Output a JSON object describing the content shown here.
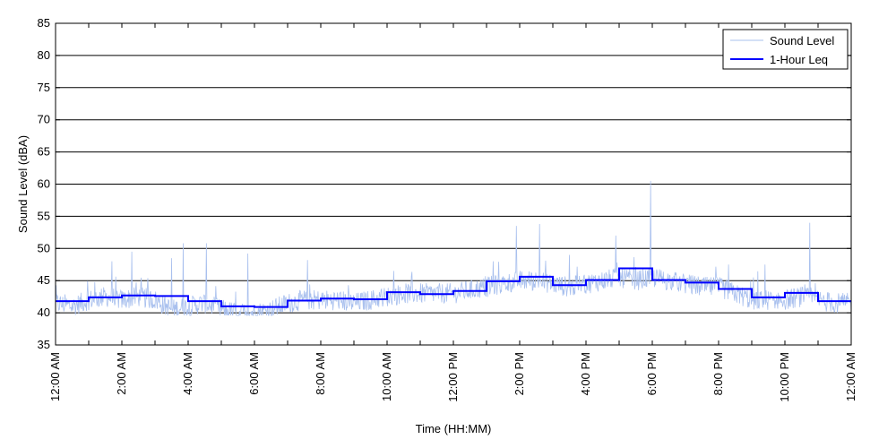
{
  "chart_data": {
    "type": "line",
    "xlabel": "Time (HH:MM)",
    "ylabel": "Sound Level (dBA)",
    "xlim": [
      0,
      24
    ],
    "ylim": [
      35,
      85
    ],
    "grid": "horizontal",
    "legend_placement": "top-right",
    "x_tick_labels": [
      "12:00 AM",
      "2:00 AM",
      "4:00 AM",
      "6:00 AM",
      "8:00 AM",
      "10:00 AM",
      "12:00 PM",
      "2:00 PM",
      "4:00 PM",
      "6:00 PM",
      "8:00 PM",
      "10:00 PM",
      "12:00 AM"
    ],
    "y_ticks": [
      35,
      40,
      45,
      50,
      55,
      60,
      65,
      70,
      75,
      80,
      85
    ],
    "series": [
      {
        "name": "Sound Level",
        "color": "#a9c0ee",
        "description_points_hours": [
          0,
          0.5,
          1,
          1.5,
          2,
          2.5,
          3,
          3.5,
          4,
          4.5,
          5,
          5.5,
          6,
          6.5,
          7,
          7.5,
          8,
          8.5,
          9,
          9.5,
          10,
          10.5,
          11,
          11.5,
          12,
          12.5,
          13,
          13.5,
          14,
          14.5,
          15,
          15.5,
          16,
          16.5,
          17,
          17.5,
          18,
          18.5,
          19,
          19.5,
          20,
          20.5,
          21,
          21.5,
          22,
          22.5,
          23,
          23.5,
          24
        ],
        "values": [
          41.5,
          41,
          42,
          42.5,
          42,
          42.5,
          42,
          40.5,
          41,
          41.5,
          40.5,
          40,
          40,
          40.5,
          41.5,
          42,
          42,
          42,
          41.5,
          42,
          42.5,
          43,
          43,
          43,
          43,
          43.5,
          44,
          44.5,
          45,
          45,
          44.5,
          44,
          44.5,
          45,
          45.5,
          45,
          45.5,
          45,
          44.5,
          44,
          44,
          43,
          42,
          42,
          42,
          42.5,
          42,
          41.5,
          41.5
        ],
        "peaks": [
          {
            "x": 1.7,
            "y": 48
          },
          {
            "x": 2.3,
            "y": 49.5
          },
          {
            "x": 3.5,
            "y": 48.5
          },
          {
            "x": 3.85,
            "y": 50.8
          },
          {
            "x": 4.55,
            "y": 50.8
          },
          {
            "x": 5.8,
            "y": 49.2
          },
          {
            "x": 7.6,
            "y": 48.2
          },
          {
            "x": 10.2,
            "y": 46.5
          },
          {
            "x": 13.2,
            "y": 48
          },
          {
            "x": 13.9,
            "y": 53.5
          },
          {
            "x": 14.6,
            "y": 53.8
          },
          {
            "x": 15.5,
            "y": 49
          },
          {
            "x": 16.9,
            "y": 52
          },
          {
            "x": 17.95,
            "y": 60.5
          },
          {
            "x": 20.3,
            "y": 47.5
          },
          {
            "x": 21.4,
            "y": 47.5
          },
          {
            "x": 22.75,
            "y": 54
          }
        ]
      },
      {
        "name": "1-Hour Leq",
        "color": "#0000ff",
        "hours": [
          0,
          1,
          2,
          3,
          4,
          5,
          6,
          7,
          8,
          9,
          10,
          11,
          12,
          13,
          14,
          15,
          16,
          17,
          18,
          19,
          20,
          21,
          22,
          23
        ],
        "values": [
          41.8,
          42.4,
          42.7,
          42.6,
          41.8,
          41.0,
          40.9,
          41.9,
          42.2,
          42.1,
          43.2,
          42.9,
          43.4,
          44.9,
          45.6,
          44.3,
          45.1,
          46.9,
          45.1,
          44.7,
          43.7,
          42.4,
          43.1,
          41.8
        ]
      }
    ]
  }
}
